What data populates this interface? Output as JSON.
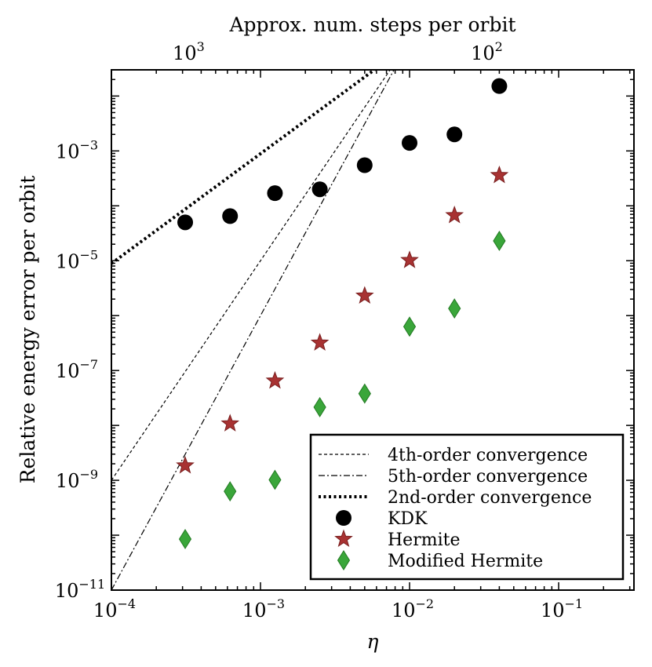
{
  "chart_data": {
    "type": "scatter",
    "xscale": "log",
    "yscale": "log",
    "xlabel": "η",
    "ylabel": "Relative energy error per orbit",
    "top_xlabel": "Approx. num. steps per orbit",
    "xlim": [
      0.0001,
      0.32
    ],
    "ylim": [
      1e-11,
      0.03
    ],
    "x_ticks": [
      {
        "value": 0.0001,
        "base": "10",
        "exp": "−4"
      },
      {
        "value": 0.001,
        "base": "10",
        "exp": "−3"
      },
      {
        "value": 0.01,
        "base": "10",
        "exp": "−2"
      },
      {
        "value": 0.1,
        "base": "10",
        "exp": "−1"
      }
    ],
    "y_ticks": [
      {
        "value": 1e-11,
        "base": "10",
        "exp": "−11"
      },
      {
        "value": 1e-09,
        "base": "10",
        "exp": "−9"
      },
      {
        "value": 1e-07,
        "base": "10",
        "exp": "−7"
      },
      {
        "value": 1e-05,
        "base": "10",
        "exp": "−5"
      },
      {
        "value": 0.001,
        "base": "10",
        "exp": "−3"
      }
    ],
    "top_ticks": [
      {
        "value": 1000,
        "eta": 0.000314,
        "base": "10",
        "exp": "3"
      },
      {
        "value": 100,
        "eta": 0.0314,
        "base": "10",
        "exp": "2"
      }
    ],
    "series": [
      {
        "name": "KDK",
        "marker": "circle",
        "color": "#000000",
        "x": [
          0.0003125,
          0.000625,
          0.00125,
          0.0025,
          0.005,
          0.01,
          0.02,
          0.04
        ],
        "y": [
          5e-05,
          6.5e-05,
          0.00017,
          0.0002,
          0.00055,
          0.0014,
          0.002,
          0.0152
        ]
      },
      {
        "name": "Hermite",
        "marker": "star",
        "color": "#a83232",
        "x": [
          0.0003125,
          0.000625,
          0.00125,
          0.0025,
          0.005,
          0.01,
          0.02,
          0.04
        ],
        "y": [
          1.85e-09,
          1.08e-08,
          6.5e-08,
          3.2e-07,
          2.3e-06,
          1.02e-05,
          6.7e-05,
          0.00036
        ]
      },
      {
        "name": "Modified Hermite",
        "marker": "diamond",
        "color": "#3aa63a",
        "x": [
          0.0003125,
          0.000625,
          0.00125,
          0.0025,
          0.005,
          0.01,
          0.02,
          0.04
        ],
        "y": [
          8.5e-11,
          6.3e-10,
          1.02e-09,
          2.15e-08,
          3.8e-08,
          6.3e-07,
          1.35e-06,
          2.3e-05
        ]
      }
    ],
    "reference_lines": [
      {
        "name": "4th-order convergence",
        "style": "dashed",
        "slope": 4,
        "anchor_x": 0.0001,
        "anchor_y": 1e-09
      },
      {
        "name": "5th-order convergence",
        "style": "dashdot",
        "slope": 5,
        "anchor_x": 0.0001,
        "anchor_y": 1e-11
      },
      {
        "name": "2nd-order convergence",
        "style": "dotted",
        "slope": 2,
        "anchor_x": 0.0001,
        "anchor_y": 8.9e-06
      }
    ],
    "legend": {
      "location": "lower-right",
      "entries": [
        "4th-order convergence",
        "5th-order convergence",
        "2nd-order convergence",
        "KDK",
        "Hermite",
        "Modified Hermite"
      ]
    }
  }
}
